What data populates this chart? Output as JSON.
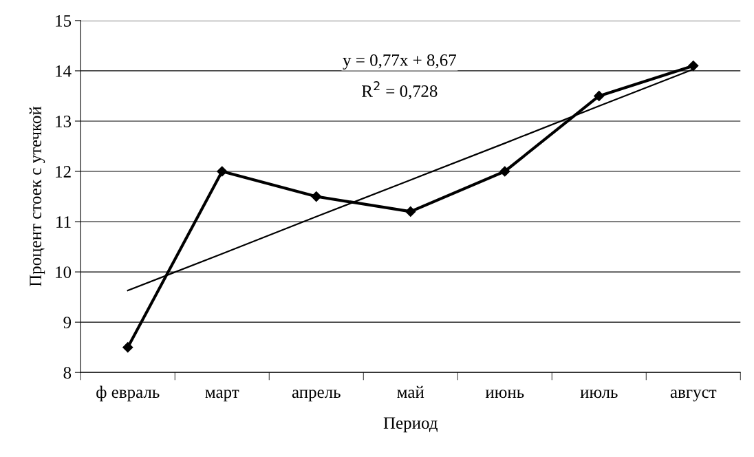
{
  "chart_data": {
    "type": "line",
    "xlabel": "Период",
    "ylabel": "Процент стоек с утечкой",
    "categories": [
      "ф евраль",
      "март",
      "апрель",
      "май",
      "июнь",
      "июль",
      "август"
    ],
    "series": [
      {
        "color": "#000000",
        "values": [
          8.5,
          12.0,
          11.5,
          11.2,
          12.0,
          13.5,
          14.1
        ],
        "marker": "diamond",
        "line_style": "solid"
      },
      {
        "color": "#000000",
        "values": [
          9.63,
          10.36,
          11.1,
          11.83,
          12.56,
          13.3,
          14.03
        ],
        "marker": "none",
        "line_style": "solid"
      }
    ],
    "ylim": [
      8,
      15
    ],
    "yticks": [
      8,
      9,
      10,
      11,
      12,
      13,
      14,
      15
    ],
    "grid": "y",
    "legend": false,
    "annotations": [
      "y = 0,77x + 8,67",
      "R$^{2}$ = 0,728"
    ]
  }
}
